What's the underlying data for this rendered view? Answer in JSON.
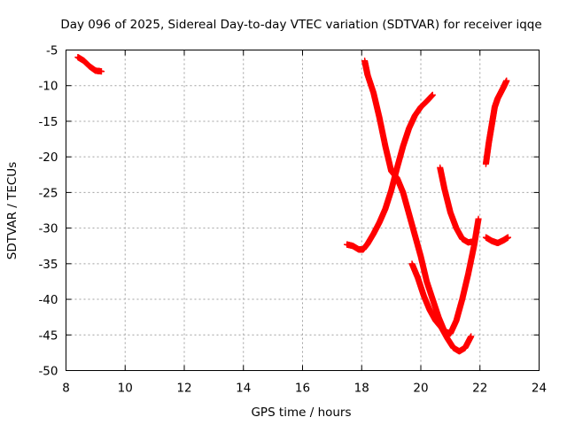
{
  "chart_data": {
    "type": "scatter",
    "title": "Day 096 of 2025, Sidereal Day-to-day VTEC variation (SDTVAR) for receiver iqqe",
    "xlabel": "GPS time / hours",
    "ylabel": "SDTVAR / TECUs",
    "xlim": [
      8,
      24
    ],
    "ylim": [
      -50,
      -5
    ],
    "xticks": [
      "8",
      "10",
      "12",
      "14",
      "16",
      "18",
      "20",
      "22",
      "24"
    ],
    "yticks": [
      "-5",
      "-10",
      "-15",
      "-20",
      "-25",
      "-30",
      "-35",
      "-40",
      "-45",
      "-50"
    ],
    "grid": true,
    "marker": "plus",
    "color": "#ff0000",
    "series": [
      {
        "x": [
          8.4,
          8.6,
          8.8,
          9.0,
          9.2
        ],
        "y": [
          -6.0,
          -6.5,
          -7.3,
          -7.9,
          -8.0
        ]
      },
      {
        "x": [
          17.5,
          17.7,
          17.9,
          18.05,
          18.2,
          18.4,
          18.6,
          18.8,
          19.0,
          19.2,
          19.4,
          19.6,
          19.8,
          20.0,
          20.2,
          20.4
        ],
        "y": [
          -32.3,
          -32.5,
          -33.0,
          -33.0,
          -32.2,
          -30.8,
          -29.2,
          -27.3,
          -24.7,
          -21.5,
          -18.5,
          -16.0,
          -14.2,
          -13.0,
          -12.2,
          -11.3
        ]
      },
      {
        "x": [
          18.1,
          18.2,
          18.4,
          18.6,
          18.8,
          19.0,
          19.2,
          19.4,
          19.6,
          19.8,
          20.0,
          20.2,
          20.4,
          20.6,
          20.8,
          21.0,
          21.2,
          21.4,
          21.6,
          21.8,
          21.95
        ],
        "y": [
          -6.5,
          -8.5,
          -11.0,
          -14.5,
          -18.5,
          -22.0,
          -23.0,
          -25.0,
          -28.0,
          -31.0,
          -34.0,
          -37.5,
          -40.0,
          -42.5,
          -44.5,
          -44.8,
          -43.0,
          -40.0,
          -36.5,
          -32.5,
          -28.7
        ]
      },
      {
        "x": [
          19.7,
          19.9,
          20.1,
          20.3,
          20.5,
          20.7,
          20.9,
          21.1,
          21.3,
          21.5,
          21.7
        ],
        "y": [
          -35.0,
          -37.0,
          -39.5,
          -41.5,
          -43.0,
          -44.0,
          -45.5,
          -46.8,
          -47.3,
          -46.8,
          -45.2
        ]
      },
      {
        "x": [
          20.65,
          20.8,
          21.0,
          21.2,
          21.4,
          21.6,
          21.8
        ],
        "y": [
          -21.5,
          -24.5,
          -27.8,
          -30.0,
          -31.5,
          -32.0,
          -31.9
        ]
      },
      {
        "x": [
          22.2,
          22.3,
          22.4,
          22.5,
          22.6,
          22.7,
          22.8,
          22.9
        ],
        "y": [
          -21.0,
          -18.0,
          -15.5,
          -13.0,
          -11.8,
          -11.0,
          -10.2,
          -9.3
        ]
      },
      {
        "x": [
          22.2,
          22.4,
          22.6,
          22.8,
          22.95
        ],
        "y": [
          -31.3,
          -31.8,
          -32.1,
          -31.7,
          -31.3
        ]
      }
    ]
  }
}
